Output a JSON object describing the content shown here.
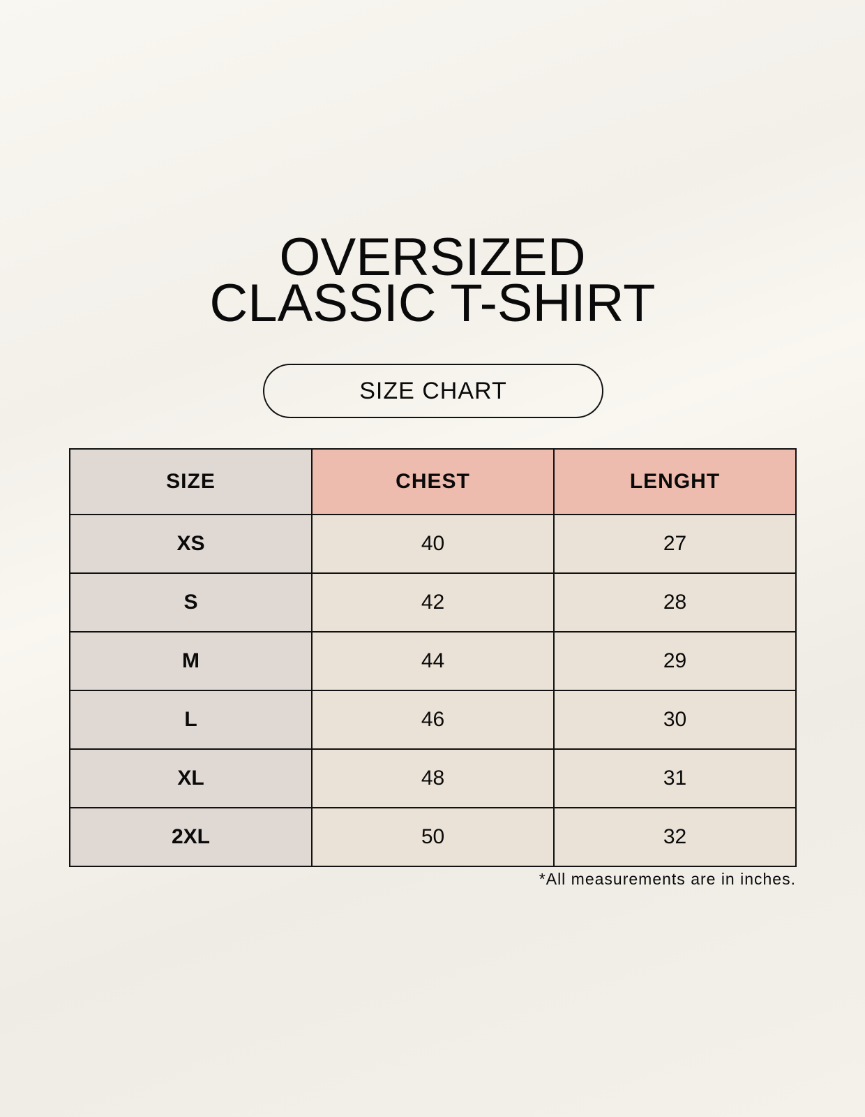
{
  "title": {
    "line1": "OVERSIZED",
    "line2": "CLASSIC T-SHIRT"
  },
  "badge": "SIZE CHART",
  "colors": {
    "size_column": "#e0d8d3",
    "header_accent": "#edbcae",
    "value_cells": "#ebe2d7",
    "border": "#111111"
  },
  "table": {
    "headers": [
      "SIZE",
      "CHEST",
      "LENGHT"
    ],
    "rows": [
      [
        "XS",
        "40",
        "27"
      ],
      [
        "S",
        "42",
        "28"
      ],
      [
        "M",
        "44",
        "29"
      ],
      [
        "L",
        "46",
        "30"
      ],
      [
        "XL",
        "48",
        "31"
      ],
      [
        "2XL",
        "50",
        "32"
      ]
    ]
  },
  "footnote": "*All measurements are in inches."
}
